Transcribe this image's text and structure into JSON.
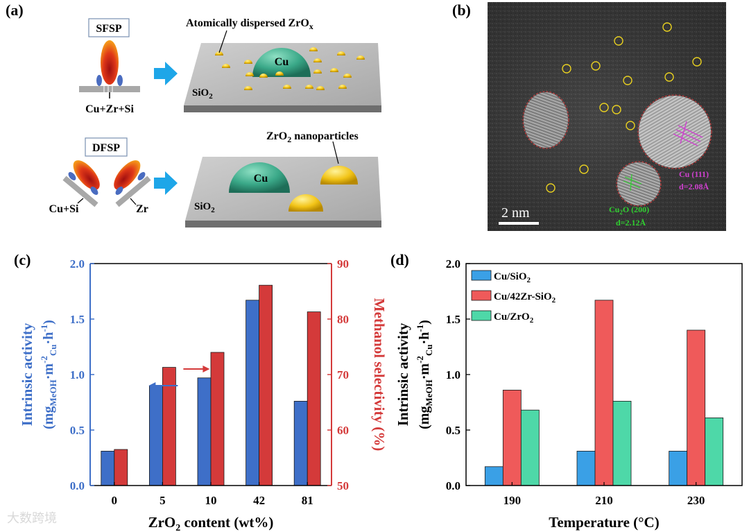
{
  "panels": {
    "a": "(a)",
    "b": "(b)",
    "c": "(c)",
    "d": "(d)"
  },
  "schematic": {
    "sfsp": "SFSP",
    "dfsp": "DFSP",
    "sfsp_feed": "Cu+Zr+Si",
    "dfsp_feed_left": "Cu+Si",
    "dfsp_feed_right": "Zr",
    "cu": "Cu",
    "sio2": "SiO",
    "sio2_sub": "2",
    "atomic_label": "Atomically dispersed ZrO",
    "atomic_sub": "x",
    "nano_label": "ZrO",
    "nano_sub": "2",
    "nano_rest": " nanoparticles",
    "colors": {
      "cu": "#3aa888",
      "zr": "#f2c418",
      "arrow": "#1ea6e8",
      "flame": "#e03818",
      "substrate": "#b4b4b4"
    }
  },
  "tem": {
    "scale": "2 nm",
    "cu111_line1": "Cu (111)",
    "cu111_line2": "d=2.08Å",
    "cu2o_line1": "Cu",
    "cu2o_sub": "2",
    "cu2o_line1b": "O (200)",
    "cu2o_line2": "d=2.12Å"
  },
  "chart_data": [
    {
      "type": "bar",
      "panel": "c",
      "categories": [
        "0",
        "5",
        "10",
        "42",
        "81"
      ],
      "xlabel_pre": "ZrO",
      "xlabel_sub": "2",
      "xlabel_post": " content (wt%)",
      "ylabel_left_line1": "Intrinsic activity",
      "ylabel_left_line2": "(mg",
      "ylabel_right": "Methanol selectivity (%)",
      "ylim_left": [
        0,
        2.0
      ],
      "yticks_left": [
        "0.0",
        "0.5",
        "1.0",
        "1.5",
        "2.0"
      ],
      "ylim_right": [
        50,
        90
      ],
      "yticks_right": [
        "50",
        "60",
        "70",
        "80",
        "90"
      ],
      "series": [
        {
          "name": "Intrinsic activity",
          "axis": "left",
          "color": "#3e6fc8",
          "values": [
            0.31,
            0.9,
            0.97,
            1.67,
            0.76
          ]
        },
        {
          "name": "Methanol selectivity",
          "axis": "right",
          "color": "#d43a3a",
          "values": [
            56.5,
            71.3,
            74.0,
            86.1,
            81.3
          ]
        }
      ]
    },
    {
      "type": "bar",
      "panel": "d",
      "categories": [
        "190",
        "210",
        "230"
      ],
      "xlabel": "Temperature (°C)",
      "ylabel_line1": "Intrinsic activity",
      "ylim": [
        0,
        2.0
      ],
      "yticks": [
        "0.0",
        "0.5",
        "1.0",
        "1.5",
        "2.0"
      ],
      "series": [
        {
          "name": "Cu/SiO2",
          "legend_pre": "Cu/SiO",
          "legend_sub": "2",
          "legend_post": "",
          "color": "#3aa0e6",
          "values": [
            0.17,
            0.31,
            0.31
          ]
        },
        {
          "name": "Cu/42Zr-SiO2",
          "legend_pre": "Cu/42Zr-SiO",
          "legend_sub": "2",
          "legend_post": "",
          "color": "#ef5a5a",
          "values": [
            0.86,
            1.67,
            1.4
          ]
        },
        {
          "name": "Cu/ZrO2",
          "legend_pre": "Cu/ZrO",
          "legend_sub": "2",
          "legend_post": "",
          "color": "#4ed8a8",
          "values": [
            0.68,
            0.76,
            0.61
          ]
        }
      ]
    }
  ],
  "watermark": "大数跨境"
}
